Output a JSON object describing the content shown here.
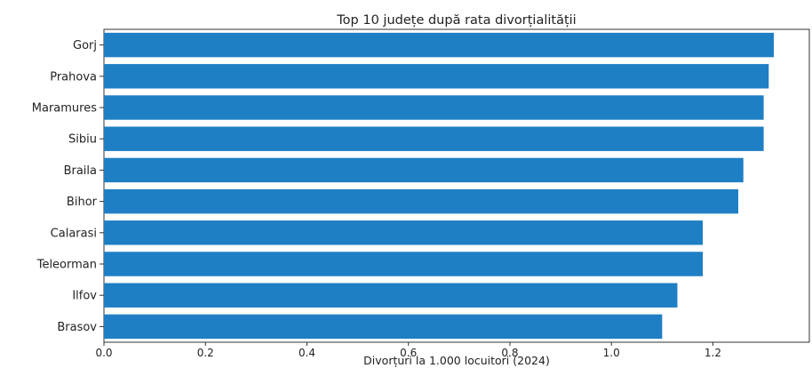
{
  "chart_data": {
    "type": "bar",
    "orientation": "horizontal",
    "title": "Top 10 județe după rata divorțialității",
    "xlabel": "Divorțuri la 1.000 locuitori (2024)",
    "ylabel": "",
    "categories": [
      "Gorj",
      "Prahova",
      "Maramures",
      "Sibiu",
      "Braila",
      "Bihor",
      "Calarasi",
      "Teleorman",
      "Ilfov",
      "Brasov"
    ],
    "values": [
      1.32,
      1.31,
      1.3,
      1.3,
      1.26,
      1.25,
      1.18,
      1.18,
      1.13,
      1.1
    ],
    "xlim": [
      0,
      1.39
    ],
    "xticks": [
      0.0,
      0.2,
      0.4,
      0.6,
      0.8,
      1.0,
      1.2
    ],
    "xtick_labels": [
      "0.0",
      "0.2",
      "0.4",
      "0.6",
      "0.8",
      "1.0",
      "1.2"
    ],
    "bar_color": "#1f7fc4",
    "grid": false,
    "legend": "none"
  }
}
